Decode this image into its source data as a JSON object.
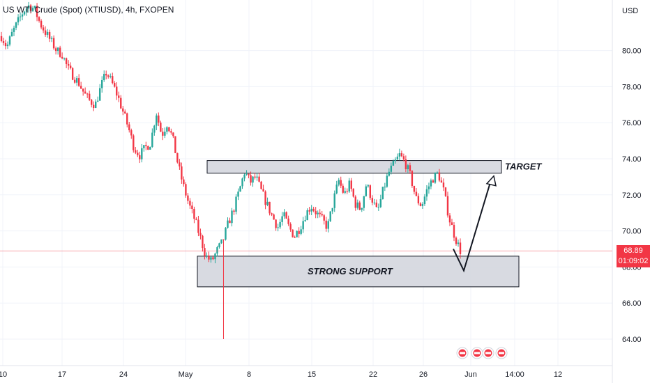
{
  "header": {
    "symbol_title": "US WTI Crude (Spot) (XTIUSD), 4h, FXOPEN"
  },
  "price_axis": {
    "currency": "USD",
    "current_price": "68.89",
    "countdown": "01:09:02",
    "tick_labels": [
      "80.00",
      "78.00",
      "76.00",
      "74.00",
      "72.00",
      "70.00",
      "68.00",
      "66.00",
      "64.00"
    ]
  },
  "time_axis": {
    "tick_labels": [
      "10",
      "17",
      "24",
      "May",
      "8",
      "15",
      "22",
      "26",
      "Jun",
      "14:00",
      "12"
    ]
  },
  "annotations": {
    "target_label": "TARGET",
    "support_label": "STRONG SUPPORT"
  },
  "colors": {
    "up": "#26a69a",
    "down": "#f23645",
    "zone": "#d1d4dc",
    "accent": "#f23645"
  },
  "icons": [
    "event-flag-icon",
    "event-flag-icon",
    "event-flag-icon",
    "event-flag-icon"
  ],
  "chart_data": {
    "type": "candlestick",
    "title": "US WTI Crude (Spot) (XTIUSD), 4h, FXOPEN",
    "timeframe": "4h",
    "ylabel": "USD",
    "ylim": [
      63.0,
      82.5
    ],
    "grid": true,
    "current_price": 68.89,
    "x_tick_labels": [
      "10",
      "17",
      "24",
      "May",
      "8",
      "15",
      "22",
      "26",
      "Jun",
      "14:00",
      "12"
    ],
    "y_tick_values": [
      80,
      78,
      76,
      74,
      72,
      70,
      68,
      66,
      64
    ],
    "path_closes": [
      80.8,
      80.2,
      81.0,
      81.6,
      82.2,
      82.5,
      82.3,
      81.5,
      81.0,
      80.5,
      80.0,
      79.8,
      79.0,
      78.6,
      78.2,
      77.6,
      77.2,
      77.0,
      78.0,
      78.8,
      78.2,
      77.5,
      76.6,
      75.7,
      74.6,
      74.2,
      74.6,
      74.9,
      76.6,
      75.3,
      76.0,
      75.1,
      73.6,
      72.4,
      71.4,
      70.6,
      69.6,
      68.6,
      68.3,
      68.9,
      69.4,
      70.4,
      71.2,
      72.2,
      73.3,
      72.7,
      73.0,
      72.2,
      71.5,
      70.8,
      70.2,
      70.9,
      70.2,
      69.7,
      70.2,
      70.9,
      71.4,
      71.0,
      70.6,
      70.2,
      71.6,
      72.8,
      72.0,
      72.6,
      71.5,
      71.2,
      72.6,
      71.8,
      71.0,
      72.2,
      73.2,
      73.7,
      74.2,
      73.8,
      73.0,
      71.8,
      71.4,
      72.3,
      72.9,
      73.2,
      72.2,
      70.7,
      69.7,
      68.9
    ],
    "spike_low": 64.0,
    "zones": [
      {
        "name": "TARGET",
        "low": 73.2,
        "high": 73.9
      },
      {
        "name": "STRONG SUPPORT",
        "low": 66.9,
        "high": 68.6
      }
    ],
    "projection": [
      {
        "label": "from",
        "price": 69.0
      },
      {
        "label": "low",
        "price": 67.8
      },
      {
        "label": "to",
        "price": 73.2
      }
    ]
  }
}
